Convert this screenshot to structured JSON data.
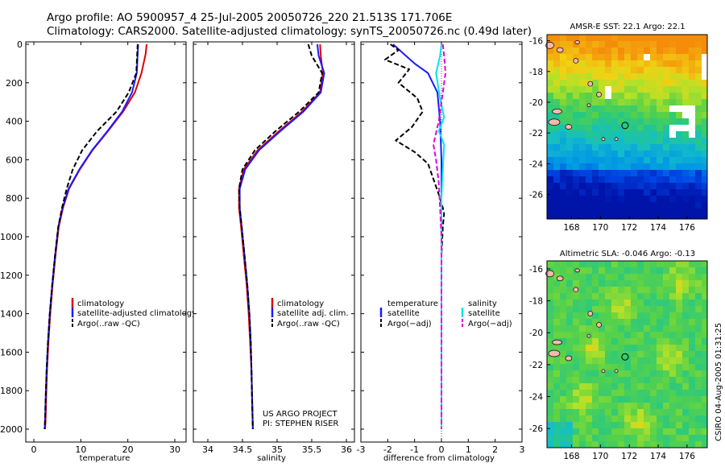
{
  "header": {
    "line1": "Argo profile: AO 5900957_4 25-Jul-2005 20050726_220 21.513S 171.706E",
    "line2": "Climatology: CARS2000. Satellite-adjusted climatology: synTS_20050726.nc (0.49d later)"
  },
  "colors": {
    "climatology": "#e00000",
    "satellite": "#1a1aff",
    "argo": "#000000",
    "salinity_sat": "#00e5ee",
    "salinity_argo": "#e000e0",
    "map_land": "#f4b8b0"
  },
  "chart_data": [
    {
      "id": "temperature",
      "type": "line",
      "xlabel": "temperature",
      "ylabel": "",
      "xlim": [
        -2,
        32
      ],
      "ylim": [
        2050,
        0
      ],
      "xticks": [
        0,
        10,
        20,
        30
      ],
      "yticks": [
        0,
        200,
        400,
        600,
        800,
        1000,
        1200,
        1400,
        1600,
        1800,
        2000
      ],
      "legend_location": "lower-right",
      "series": [
        {
          "name": "climatology",
          "color": "#e00000",
          "dash": "solid",
          "x": [
            24.0,
            23.8,
            22.9,
            21.5,
            19.0,
            15.8,
            12.5,
            9.8,
            7.5,
            6.2,
            5.3,
            4.6,
            4.0,
            3.5,
            3.1,
            2.8,
            2.6,
            2.5,
            2.4
          ],
          "y": [
            0,
            50,
            150,
            250,
            350,
            450,
            550,
            650,
            750,
            850,
            950,
            1100,
            1250,
            1400,
            1550,
            1700,
            1850,
            1950,
            2000
          ]
        },
        {
          "name": "satellite-adjusted climatology",
          "color": "#1a1aff",
          "dash": "solid",
          "x": [
            22.2,
            22.1,
            21.9,
            20.9,
            18.8,
            15.7,
            12.4,
            9.7,
            7.4,
            6.1,
            5.2,
            4.5,
            3.9,
            3.4,
            3.0,
            2.7,
            2.5,
            2.4,
            2.3
          ],
          "y": [
            0,
            50,
            150,
            250,
            350,
            450,
            550,
            650,
            750,
            850,
            950,
            1100,
            1250,
            1400,
            1550,
            1700,
            1850,
            1950,
            2000
          ]
        },
        {
          "name": "Argo(..raw -QC)",
          "color": "#000000",
          "dash": "dash",
          "x": [
            22.1,
            22.0,
            21.8,
            20.2,
            17.6,
            13.5,
            10.3,
            8.3,
            7.0,
            6.0,
            5.2,
            4.5,
            3.9,
            3.4,
            3.0,
            2.7,
            2.5,
            2.4,
            2.3
          ],
          "y": [
            0,
            50,
            150,
            250,
            350,
            450,
            550,
            650,
            750,
            850,
            950,
            1100,
            1250,
            1400,
            1550,
            1700,
            1850,
            1950,
            2000
          ]
        }
      ]
    },
    {
      "id": "salinity",
      "type": "line",
      "xlabel": "salinity",
      "ylabel": "",
      "xlim": [
        33.75,
        36.1
      ],
      "ylim": [
        2050,
        0
      ],
      "xticks": [
        34,
        34.5,
        35,
        35.5,
        36
      ],
      "legend_location": "lower-right",
      "annotations": [
        "US ARGO PROJECT",
        "PI: STEPHEN RISER"
      ],
      "series": [
        {
          "name": "climatology",
          "color": "#e00000",
          "dash": "solid",
          "x": [
            35.62,
            35.63,
            35.66,
            35.62,
            35.36,
            35.03,
            34.72,
            34.52,
            34.45,
            34.45,
            34.48,
            34.52,
            34.56,
            34.59,
            34.61,
            34.63,
            34.64,
            34.65
          ],
          "y": [
            0,
            60,
            150,
            250,
            350,
            450,
            550,
            650,
            750,
            850,
            950,
            1100,
            1250,
            1400,
            1550,
            1700,
            1850,
            2000
          ]
        },
        {
          "name": "satellite adj. clim.",
          "color": "#1a1aff",
          "dash": "solid",
          "x": [
            35.58,
            35.6,
            35.68,
            35.63,
            35.38,
            35.05,
            34.74,
            34.54,
            34.46,
            34.46,
            34.49,
            34.53,
            34.57,
            34.6,
            34.62,
            34.63,
            34.64,
            34.65
          ],
          "y": [
            0,
            60,
            150,
            250,
            350,
            450,
            550,
            650,
            750,
            850,
            950,
            1100,
            1250,
            1400,
            1550,
            1700,
            1850,
            2000
          ]
        },
        {
          "name": "Argo(..raw -QC)",
          "color": "#000000",
          "dash": "dash",
          "x": [
            35.45,
            35.5,
            35.65,
            35.6,
            35.32,
            34.98,
            34.68,
            34.5,
            34.45,
            34.46,
            34.49,
            34.53,
            34.57,
            34.6,
            34.62,
            34.63,
            34.64,
            34.65
          ],
          "y": [
            0,
            60,
            150,
            250,
            350,
            450,
            550,
            650,
            750,
            850,
            950,
            1100,
            1250,
            1400,
            1550,
            1700,
            1850,
            2000
          ]
        }
      ]
    },
    {
      "id": "difference",
      "type": "line",
      "xlabel": "difference from climatology",
      "ylabel": "",
      "xlim": [
        -3,
        3
      ],
      "ylim": [
        2050,
        0
      ],
      "xticks": [
        -3,
        -2,
        -1,
        0,
        1,
        2,
        3
      ],
      "legend_location": "lower-center",
      "legend_titles": [
        "temperature",
        "salinity"
      ],
      "series": [
        {
          "name": "temperature satellite",
          "group": "temperature",
          "color": "#1a1aff",
          "dash": "solid",
          "x": [
            -1.8,
            -1.4,
            -1.0,
            -0.5,
            -0.15,
            -0.05,
            0.0,
            0.0,
            0.0,
            0.0
          ],
          "y": [
            0,
            50,
            100,
            150,
            250,
            400,
            600,
            1000,
            1500,
            2000
          ]
        },
        {
          "name": "temperature Argo(-adj)",
          "group": "temperature",
          "color": "#000000",
          "dash": "dash",
          "x": [
            -1.9,
            -1.6,
            -2.1,
            -1.2,
            -1.6,
            -0.9,
            -0.7,
            -1.1,
            -1.7,
            -1.0,
            -0.5,
            -0.3,
            -0.1,
            0.05,
            0.1,
            0.05,
            0.0,
            0.0,
            0.0
          ],
          "y": [
            0,
            30,
            80,
            130,
            200,
            280,
            350,
            430,
            500,
            560,
            620,
            700,
            780,
            850,
            880,
            950,
            1100,
            1500,
            2000
          ]
        },
        {
          "name": "salinity satellite",
          "group": "salinity",
          "color": "#00e5ee",
          "dash": "solid",
          "x": [
            0.0,
            -0.05,
            -0.2,
            -0.05,
            0.1,
            -0.1,
            0.1,
            0.05,
            0.0,
            0.0,
            0.0
          ],
          "y": [
            0,
            60,
            150,
            280,
            380,
            450,
            520,
            650,
            800,
            1200,
            2000
          ]
        },
        {
          "name": "salinity Argo(-adj)",
          "group": "salinity",
          "color": "#e000e0",
          "dash": "dash",
          "x": [
            0.05,
            0.1,
            0.15,
            0.05,
            -0.1,
            -0.3,
            -0.2,
            -0.1,
            -0.05,
            0.0,
            0.0,
            0.0
          ],
          "y": [
            0,
            60,
            150,
            250,
            400,
            520,
            600,
            720,
            850,
            1000,
            1300,
            2000
          ]
        }
      ]
    },
    {
      "id": "sst_map",
      "type": "heatmap",
      "title": "AMSR-E SST: 22.1 Argo: 22.1",
      "xlim": [
        166.3,
        177.4
      ],
      "ylim": [
        -27.6,
        -15.6
      ],
      "xticks": [
        168,
        170,
        172,
        174,
        176
      ],
      "yticks": [
        -16,
        -18,
        -20,
        -22,
        -24,
        -26
      ],
      "profile_location": [
        171.706,
        -21.513
      ]
    },
    {
      "id": "sla_map",
      "type": "heatmap",
      "title": "Altimetric SLA: -0.046 Argo: -0.13",
      "xlim": [
        166.3,
        177.4
      ],
      "ylim": [
        -27.2,
        -15.5
      ],
      "xticks": [
        168,
        170,
        172,
        174,
        176
      ],
      "yticks": [
        -16,
        -18,
        -20,
        -22,
        -24,
        -26
      ],
      "profile_location": [
        171.706,
        -21.513
      ]
    }
  ],
  "credit": "CSIRO 04-Aug-2005 01:31:25"
}
